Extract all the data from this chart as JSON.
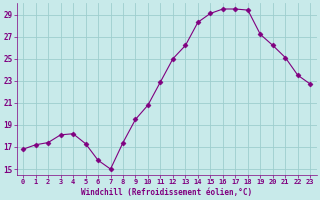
{
  "x": [
    0,
    1,
    2,
    3,
    4,
    5,
    6,
    7,
    8,
    9,
    10,
    11,
    12,
    13,
    14,
    15,
    16,
    17,
    18,
    19,
    20,
    21,
    22,
    23
  ],
  "y": [
    16.8,
    17.2,
    17.4,
    18.1,
    18.2,
    17.3,
    15.8,
    15.0,
    17.4,
    19.5,
    20.8,
    22.9,
    25.0,
    26.2,
    28.3,
    29.1,
    29.5,
    29.5,
    29.4,
    27.2,
    26.2,
    25.1,
    23.5,
    22.7
  ],
  "line_color": "#800080",
  "marker": "D",
  "marker_color": "#800080",
  "bg_color": "#c8eaea",
  "grid_color": "#9ecece",
  "tick_label_color": "#800080",
  "xlabel": "Windchill (Refroidissement éolien,°C)",
  "xlabel_color": "#800080",
  "ylim": [
    14.5,
    30.0
  ],
  "yticks": [
    15,
    17,
    19,
    21,
    23,
    25,
    27,
    29
  ],
  "xticks": [
    0,
    1,
    2,
    3,
    4,
    5,
    6,
    7,
    8,
    9,
    10,
    11,
    12,
    13,
    14,
    15,
    16,
    17,
    18,
    19,
    20,
    21,
    22,
    23
  ],
  "xtick_labels": [
    "0",
    "1",
    "2",
    "3",
    "4",
    "5",
    "6",
    "7",
    "8",
    "9",
    "10",
    "11",
    "12",
    "13",
    "14",
    "15",
    "16",
    "17",
    "18",
    "19",
    "20",
    "21",
    "22",
    "23"
  ]
}
